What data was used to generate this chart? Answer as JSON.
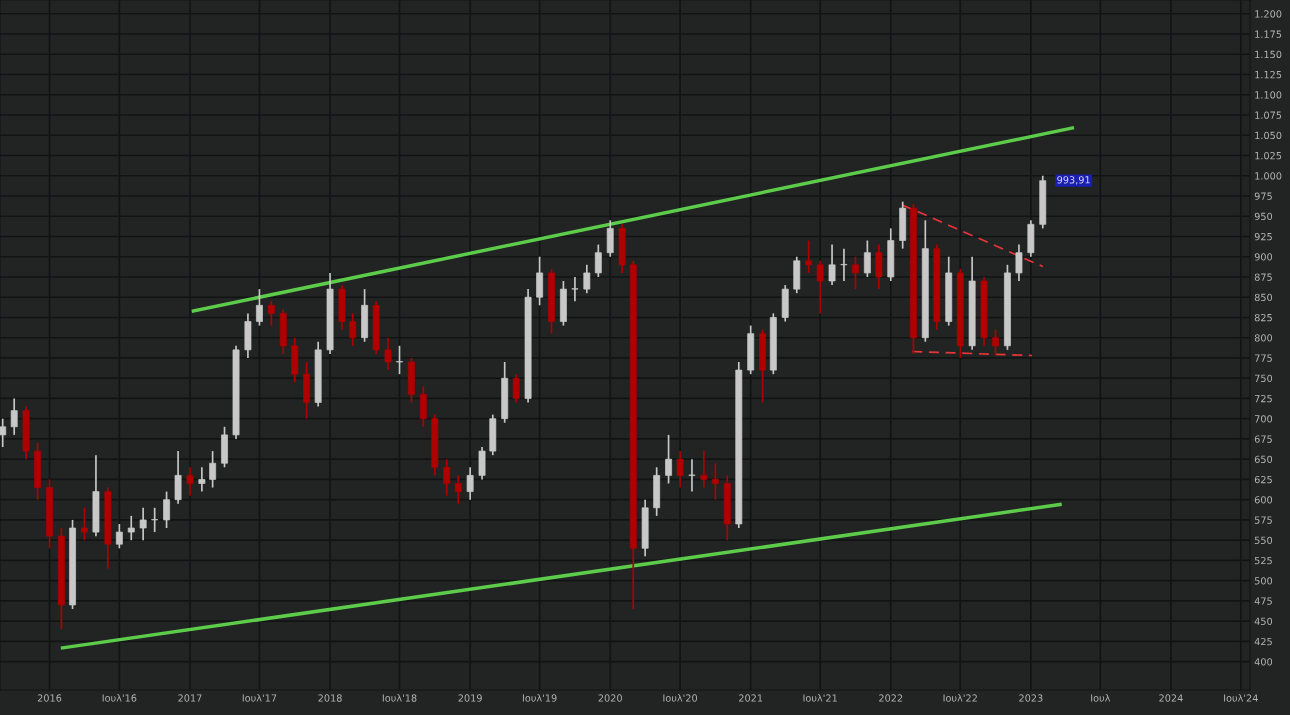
{
  "chart_data": {
    "type": "candlestick",
    "xlim": [
      "2015-08-25",
      "2024-07-25"
    ],
    "ylim": [
      365,
      1217
    ],
    "xticks": [
      {
        "value": "2016-01-01",
        "label": "2016"
      },
      {
        "value": "2016-07-01",
        "label": "Ιουλ'16"
      },
      {
        "value": "2017-01-01",
        "label": "2017"
      },
      {
        "value": "2017-07-01",
        "label": "Ιουλ'17"
      },
      {
        "value": "2018-01-01",
        "label": "2018"
      },
      {
        "value": "2018-07-01",
        "label": "Ιουλ'18"
      },
      {
        "value": "2019-01-01",
        "label": "2019"
      },
      {
        "value": "2019-07-01",
        "label": "Ιουλ'19"
      },
      {
        "value": "2020-01-01",
        "label": "2020"
      },
      {
        "value": "2020-07-01",
        "label": "Ιουλ'20"
      },
      {
        "value": "2021-01-01",
        "label": "2021"
      },
      {
        "value": "2021-07-01",
        "label": "Ιουλ'21"
      },
      {
        "value": "2022-01-01",
        "label": "2022"
      },
      {
        "value": "2022-07-01",
        "label": "Ιουλ'22"
      },
      {
        "value": "2023-01-01",
        "label": "2023"
      },
      {
        "value": "2023-07-01",
        "label": "Ιουλ"
      },
      {
        "value": "2024-01-01",
        "label": "2024"
      },
      {
        "value": "2024-07-01",
        "label": "Ιουλ'24"
      }
    ],
    "yticks": [
      400,
      425,
      450,
      475,
      500,
      525,
      550,
      575,
      600,
      625,
      650,
      675,
      700,
      725,
      750,
      775,
      800,
      825,
      850,
      875,
      900,
      925,
      950,
      975,
      {
        "value": 1000,
        "label": "1.000"
      },
      {
        "value": 1025,
        "label": "1.025"
      },
      {
        "value": 1050,
        "label": "1.050"
      },
      {
        "value": 1075,
        "label": "1.075"
      },
      {
        "value": 1100,
        "label": "1.100"
      },
      {
        "value": 1125,
        "label": "1.125"
      },
      {
        "value": 1150,
        "label": "1.150"
      },
      {
        "value": 1175,
        "label": "1.175"
      },
      {
        "value": 1200,
        "label": "1.200"
      }
    ],
    "grid": true,
    "legend": false,
    "annotations": [
      {
        "text": "993,91",
        "x": "2023-02",
        "y": 993.91
      }
    ],
    "series": [
      {
        "type": "candlestick",
        "colors": [
          "#c8c8c8",
          "#c8c8c8",
          "#b00000",
          "#b00000",
          "#b00000",
          "#b00000",
          "#c8c8c8",
          "#b00000",
          "#c8c8c8",
          "#b00000",
          "#c8c8c8",
          "#c8c8c8",
          "#c8c8c8",
          "#c8c8c8",
          "#c8c8c8",
          "#c8c8c8",
          "#b00000",
          "#c8c8c8",
          "#c8c8c8",
          "#c8c8c8",
          "#c8c8c8",
          "#c8c8c8",
          "#c8c8c8",
          "#b00000",
          "#b00000",
          "#b00000",
          "#b00000",
          "#c8c8c8",
          "#c8c8c8",
          "#b00000",
          "#b00000",
          "#c8c8c8",
          "#b00000",
          "#b00000",
          "#c8c8c8",
          "#b00000",
          "#b00000",
          "#b00000",
          "#b00000",
          "#b00000",
          "#c8c8c8",
          "#c8c8c8",
          "#c8c8c8",
          "#c8c8c8",
          "#b00000",
          "#c8c8c8",
          "#c8c8c8",
          "#b00000",
          "#c8c8c8",
          "#c8c8c8",
          "#c8c8c8",
          "#c8c8c8",
          "#c8c8c8",
          "#b00000",
          "#b00000",
          "#c8c8c8",
          "#c8c8c8",
          "#c8c8c8",
          "#b00000",
          "#c8c8c8",
          "#b00000",
          "#b00000",
          "#b00000",
          "#c8c8c8",
          "#c8c8c8",
          "#b00000",
          "#c8c8c8",
          "#c8c8c8",
          "#c8c8c8",
          "#b00000",
          "#b00000",
          "#c8c8c8",
          "#c8c8c8",
          "#b00000",
          "#c8c8c8",
          "#b00000",
          "#c8c8c8",
          "#c8c8c8",
          "#b00000",
          "#c8c8c8",
          "#b00000",
          "#c8c8c8",
          "#b00000",
          "#c8c8c8",
          "#b00000",
          "#b00000",
          "#c8c8c8",
          "#c8c8c8",
          "#c8c8c8",
          "#c8c8c8"
        ],
        "x": [
          "2015-09",
          "2015-10",
          "2015-11",
          "2015-12",
          "2016-01",
          "2016-02",
          "2016-03",
          "2016-04",
          "2016-05",
          "2016-06",
          "2016-07",
          "2016-08",
          "2016-09",
          "2016-10",
          "2016-11",
          "2016-12",
          "2017-01",
          "2017-02",
          "2017-03",
          "2017-04",
          "2017-05",
          "2017-06",
          "2017-07",
          "2017-08",
          "2017-09",
          "2017-10",
          "2017-11",
          "2017-12",
          "2018-01",
          "2018-02",
          "2018-03",
          "2018-04",
          "2018-05",
          "2018-06",
          "2018-07",
          "2018-08",
          "2018-09",
          "2018-10",
          "2018-11",
          "2018-12",
          "2019-01",
          "2019-02",
          "2019-03",
          "2019-04",
          "2019-05",
          "2019-06",
          "2019-07",
          "2019-08",
          "2019-09",
          "2019-10",
          "2019-11",
          "2019-12",
          "2020-01",
          "2020-02",
          "2020-03",
          "2020-04",
          "2020-05",
          "2020-06",
          "2020-07",
          "2020-08",
          "2020-09",
          "2020-10",
          "2020-11",
          "2020-12",
          "2021-01",
          "2021-02",
          "2021-03",
          "2021-04",
          "2021-05",
          "2021-06",
          "2021-07",
          "2021-08",
          "2021-09",
          "2021-10",
          "2021-11",
          "2021-12",
          "2022-01",
          "2022-02",
          "2022-03",
          "2022-04",
          "2022-05",
          "2022-06",
          "2022-07",
          "2022-08",
          "2022-09",
          "2022-10",
          "2022-11",
          "2022-12",
          "2023-01",
          "2023-02"
        ],
        "ohlc": [
          [
            680,
            700,
            665,
            690
          ],
          [
            690,
            725,
            680,
            710
          ],
          [
            710,
            715,
            650,
            660
          ],
          [
            660,
            670,
            600,
            615
          ],
          [
            615,
            625,
            540,
            555
          ],
          [
            555,
            565,
            440,
            470
          ],
          [
            470,
            575,
            465,
            565
          ],
          [
            565,
            590,
            550,
            560
          ],
          [
            560,
            655,
            555,
            610
          ],
          [
            610,
            615,
            515,
            545
          ],
          [
            545,
            570,
            540,
            560
          ],
          [
            560,
            580,
            550,
            565
          ],
          [
            565,
            590,
            550,
            575
          ],
          [
            575,
            590,
            560,
            575
          ],
          [
            575,
            610,
            565,
            600
          ],
          [
            600,
            660,
            595,
            630
          ],
          [
            630,
            640,
            605,
            620
          ],
          [
            620,
            640,
            610,
            625
          ],
          [
            625,
            660,
            615,
            645
          ],
          [
            645,
            690,
            640,
            680
          ],
          [
            680,
            790,
            675,
            785
          ],
          [
            785,
            830,
            775,
            820
          ],
          [
            820,
            860,
            815,
            840
          ],
          [
            840,
            845,
            815,
            830
          ],
          [
            830,
            835,
            780,
            790
          ],
          [
            790,
            800,
            745,
            755
          ],
          [
            755,
            770,
            700,
            720
          ],
          [
            720,
            795,
            715,
            785
          ],
          [
            785,
            880,
            780,
            860
          ],
          [
            860,
            865,
            810,
            820
          ],
          [
            820,
            830,
            790,
            800
          ],
          [
            800,
            860,
            795,
            840
          ],
          [
            840,
            845,
            780,
            785
          ],
          [
            785,
            800,
            760,
            770
          ],
          [
            770,
            790,
            755,
            770
          ],
          [
            770,
            775,
            720,
            730
          ],
          [
            730,
            740,
            690,
            700
          ],
          [
            700,
            705,
            630,
            640
          ],
          [
            640,
            650,
            605,
            620
          ],
          [
            620,
            630,
            595,
            610
          ],
          [
            610,
            640,
            600,
            630
          ],
          [
            630,
            665,
            625,
            660
          ],
          [
            660,
            705,
            655,
            700
          ],
          [
            700,
            770,
            695,
            750
          ],
          [
            750,
            755,
            720,
            725
          ],
          [
            725,
            860,
            720,
            850
          ],
          [
            850,
            900,
            840,
            880
          ],
          [
            880,
            885,
            805,
            820
          ],
          [
            820,
            870,
            815,
            860
          ],
          [
            860,
            875,
            845,
            860
          ],
          [
            860,
            890,
            855,
            880
          ],
          [
            880,
            915,
            875,
            905
          ],
          [
            905,
            945,
            900,
            935
          ],
          [
            935,
            940,
            880,
            890
          ],
          [
            890,
            895,
            465,
            540
          ],
          [
            540,
            600,
            530,
            590
          ],
          [
            590,
            640,
            580,
            630
          ],
          [
            630,
            680,
            620,
            650
          ],
          [
            650,
            660,
            615,
            630
          ],
          [
            630,
            650,
            610,
            630
          ],
          [
            630,
            660,
            615,
            625
          ],
          [
            625,
            645,
            600,
            620
          ],
          [
            620,
            630,
            550,
            570
          ],
          [
            570,
            770,
            565,
            760
          ],
          [
            760,
            815,
            755,
            805
          ],
          [
            805,
            810,
            720,
            760
          ],
          [
            760,
            830,
            755,
            825
          ],
          [
            825,
            865,
            820,
            860
          ],
          [
            860,
            900,
            855,
            895
          ],
          [
            895,
            920,
            880,
            890
          ],
          [
            890,
            895,
            830,
            870
          ],
          [
            870,
            915,
            865,
            890
          ],
          [
            890,
            910,
            870,
            890
          ],
          [
            890,
            900,
            860,
            880
          ],
          [
            880,
            920,
            875,
            905
          ],
          [
            905,
            915,
            860,
            875
          ],
          [
            875,
            935,
            870,
            920
          ],
          [
            920,
            968,
            910,
            960
          ],
          [
            960,
            965,
            780,
            800
          ],
          [
            800,
            945,
            795,
            910
          ],
          [
            910,
            915,
            810,
            820
          ],
          [
            820,
            900,
            815,
            880
          ],
          [
            880,
            885,
            775,
            790
          ],
          [
            790,
            900,
            785,
            870
          ],
          [
            870,
            875,
            790,
            800
          ],
          [
            800,
            810,
            778,
            790
          ],
          [
            790,
            890,
            785,
            880
          ],
          [
            880,
            915,
            870,
            905
          ],
          [
            905,
            945,
            900,
            940
          ],
          [
            940,
            1000,
            935,
            993.91
          ]
        ]
      },
      {
        "type": "line",
        "color": "#5ccc4a",
        "line_style": "solid",
        "x": [
          "2017-01-10",
          "2023-04-19"
        ],
        "values": [
          833,
          1059
        ]
      },
      {
        "type": "line",
        "color": "#5ccc4a",
        "line_style": "solid",
        "x": [
          "2016-02-04",
          "2023-03-18"
        ],
        "values": [
          417,
          594
        ]
      },
      {
        "type": "line",
        "color": "#e8353a",
        "line_style": "dashed",
        "x": [
          "2022-01-31",
          "2023-02-01"
        ],
        "values": [
          964,
          888
        ]
      },
      {
        "type": "line",
        "color": "#e8353a",
        "line_style": "dashed",
        "x": [
          "2022-02-26",
          "2023-01-04"
        ],
        "values": [
          783,
          778
        ]
      }
    ]
  }
}
